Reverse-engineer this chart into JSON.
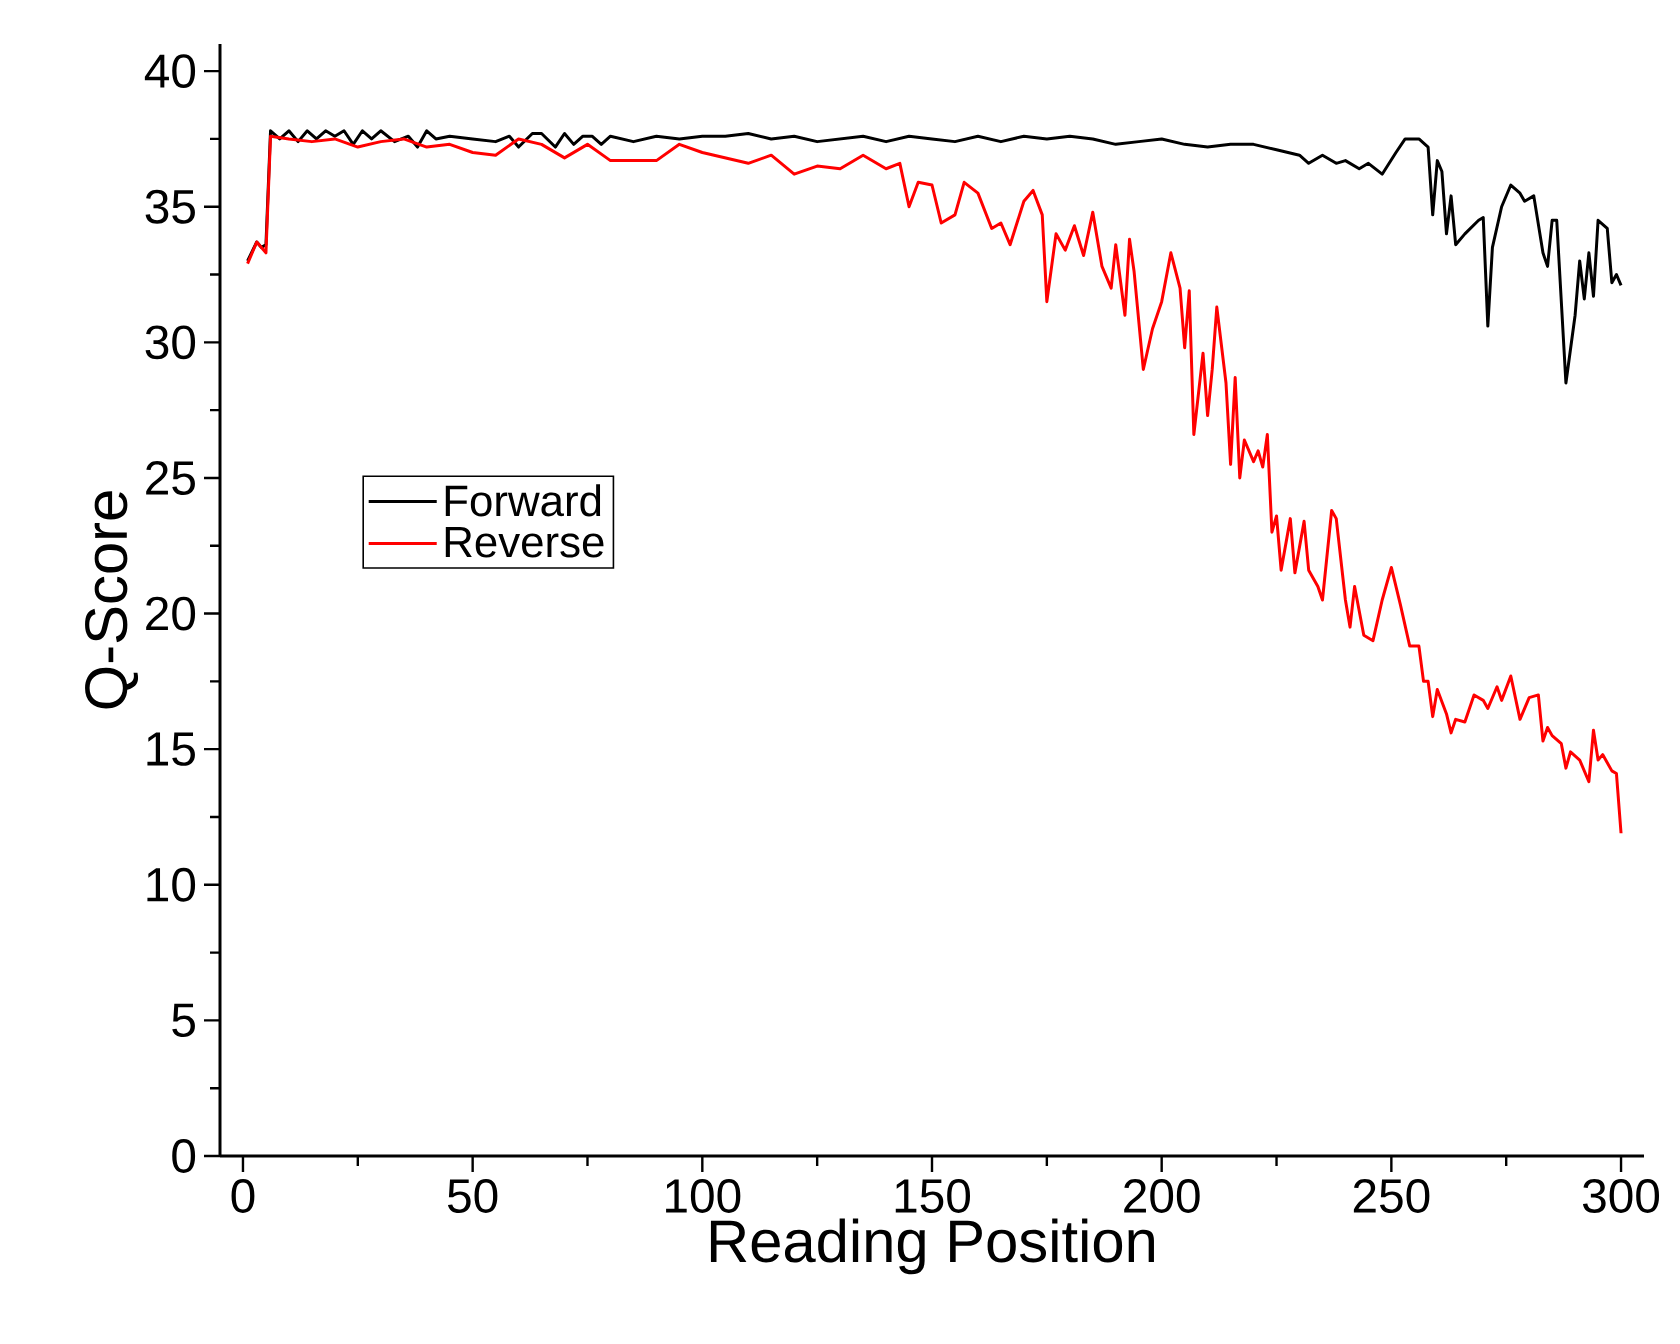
{
  "chart_data": {
    "type": "line",
    "xlabel": "Reading Position",
    "ylabel": "Q-Score",
    "xlim": [
      -5,
      305
    ],
    "ylim": [
      0,
      41
    ],
    "xticks": [
      0,
      50,
      100,
      150,
      200,
      250,
      300
    ],
    "yticks": [
      0,
      5,
      10,
      15,
      20,
      25,
      30,
      35,
      40
    ],
    "legend": "left",
    "grid": false,
    "marker": "none",
    "line_style": "solid",
    "series": [
      {
        "name": "Forward",
        "color": "#000000",
        "x": [
          1,
          3,
          4,
          5,
          6,
          8,
          10,
          12,
          14,
          16,
          18,
          20,
          22,
          24,
          26,
          28,
          30,
          33,
          36,
          38,
          40,
          42,
          45,
          50,
          55,
          58,
          60,
          63,
          65,
          68,
          70,
          72,
          74,
          76,
          78,
          80,
          85,
          90,
          95,
          100,
          105,
          110,
          115,
          120,
          125,
          130,
          135,
          140,
          145,
          150,
          155,
          160,
          165,
          170,
          175,
          180,
          185,
          190,
          195,
          200,
          205,
          210,
          215,
          220,
          225,
          230,
          232,
          235,
          238,
          240,
          243,
          245,
          248,
          251,
          253,
          256,
          258,
          259,
          260,
          261,
          262,
          263,
          264,
          266,
          269,
          270,
          271,
          272,
          274,
          276,
          278,
          279,
          281,
          283,
          284,
          285,
          286,
          288,
          290,
          291,
          292,
          293,
          294,
          295,
          297,
          298,
          299,
          300
        ],
        "values": [
          33,
          33.7,
          33.5,
          33.6,
          37.8,
          37.5,
          37.8,
          37.4,
          37.8,
          37.5,
          37.8,
          37.6,
          37.8,
          37.3,
          37.8,
          37.5,
          37.8,
          37.4,
          37.6,
          37.2,
          37.8,
          37.5,
          37.6,
          37.5,
          37.4,
          37.6,
          37.2,
          37.7,
          37.7,
          37.2,
          37.7,
          37.3,
          37.6,
          37.6,
          37.3,
          37.6,
          37.4,
          37.6,
          37.5,
          37.6,
          37.6,
          37.7,
          37.5,
          37.6,
          37.4,
          37.5,
          37.6,
          37.4,
          37.6,
          37.5,
          37.4,
          37.6,
          37.4,
          37.6,
          37.5,
          37.6,
          37.5,
          37.3,
          37.4,
          37.5,
          37.3,
          37.2,
          37.3,
          37.3,
          37.1,
          36.9,
          36.6,
          36.9,
          36.6,
          36.7,
          36.4,
          36.6,
          36.2,
          37,
          37.5,
          37.5,
          37.2,
          34.7,
          36.7,
          36.3,
          34,
          35.4,
          33.6,
          34,
          34.5,
          34.6,
          30.6,
          33.5,
          35,
          35.8,
          35.5,
          35.2,
          35.4,
          33.3,
          32.8,
          34.5,
          34.5,
          28.5,
          31,
          33,
          31.6,
          33.3,
          31.7,
          34.5,
          34.2,
          32.2,
          32.5,
          32.1
        ]
      },
      {
        "name": "Reverse",
        "color": "#ff0000",
        "x": [
          1,
          3,
          5,
          6,
          10,
          15,
          20,
          25,
          30,
          35,
          40,
          45,
          50,
          55,
          60,
          65,
          70,
          75,
          80,
          90,
          95,
          100,
          110,
          115,
          120,
          125,
          130,
          135,
          140,
          143,
          145,
          147,
          150,
          152,
          155,
          157,
          160,
          163,
          165,
          167,
          170,
          172,
          174,
          175,
          177,
          179,
          181,
          183,
          185,
          187,
          189,
          190,
          192,
          193,
          194,
          196,
          198,
          200,
          202,
          204,
          205,
          206,
          207,
          209,
          210,
          211,
          212,
          214,
          215,
          216,
          217,
          218,
          220,
          221,
          222,
          223,
          224,
          225,
          226,
          228,
          229,
          231,
          232,
          234,
          235,
          237,
          238,
          240,
          241,
          242,
          244,
          246,
          248,
          250,
          252,
          254,
          256,
          257,
          258,
          259,
          260,
          262,
          263,
          264,
          266,
          268,
          270,
          271,
          273,
          274,
          276,
          278,
          280,
          282,
          283,
          284,
          285,
          287,
          288,
          289,
          291,
          293,
          294,
          295,
          296,
          298,
          299,
          300
        ],
        "values": [
          32.9,
          33.7,
          33.3,
          37.6,
          37.5,
          37.4,
          37.5,
          37.2,
          37.4,
          37.5,
          37.2,
          37.3,
          37,
          36.9,
          37.5,
          37.3,
          36.8,
          37.3,
          36.7,
          36.7,
          37.3,
          37,
          36.6,
          36.9,
          36.2,
          36.5,
          36.4,
          36.9,
          36.4,
          36.6,
          35,
          35.9,
          35.8,
          34.4,
          34.7,
          35.9,
          35.5,
          34.2,
          34.4,
          33.6,
          35.2,
          35.6,
          34.7,
          31.5,
          34,
          33.4,
          34.3,
          33.2,
          34.8,
          32.8,
          32,
          33.6,
          31,
          33.8,
          32.6,
          29,
          30.5,
          31.5,
          33.3,
          32,
          29.8,
          31.9,
          26.6,
          29.6,
          27.3,
          29,
          31.3,
          28.5,
          25.5,
          28.7,
          25,
          26.4,
          25.6,
          26,
          25.4,
          26.6,
          23,
          23.6,
          21.6,
          23.5,
          21.5,
          23.4,
          21.6,
          21,
          20.5,
          23.8,
          23.5,
          20.5,
          19.5,
          21,
          19.2,
          19,
          20.5,
          21.7,
          20.3,
          18.8,
          18.8,
          17.5,
          17.5,
          16.2,
          17.2,
          16.3,
          15.6,
          16.1,
          16,
          17,
          16.8,
          16.5,
          17.3,
          16.8,
          17.7,
          16.1,
          16.9,
          17,
          15.3,
          15.8,
          15.5,
          15.2,
          14.3,
          14.9,
          14.6,
          13.8,
          15.7,
          14.6,
          14.8,
          14.2,
          14.1,
          11.9
        ]
      }
    ]
  }
}
